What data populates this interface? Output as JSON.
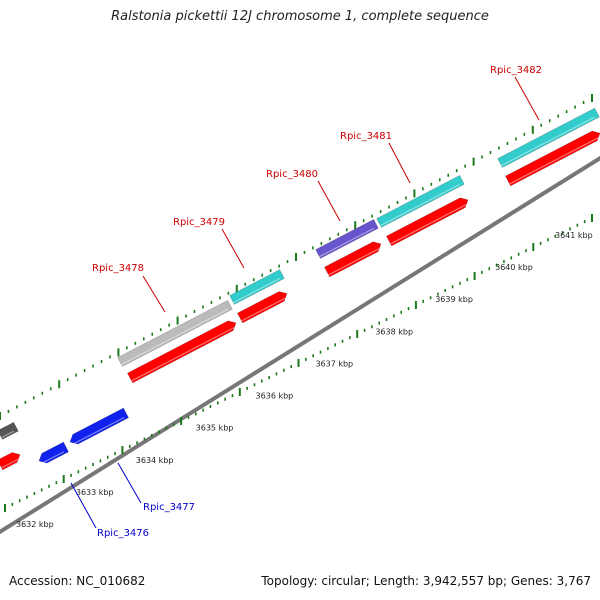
{
  "title": "Ralstonia pickettii 12J chromosome 1, complete sequence",
  "footer": {
    "accession": "Accession: NC_010682",
    "summary": "Topology: circular; Length: 3,942,557 bp; Genes: 3,767"
  },
  "colors": {
    "forward_label": "#cc0000",
    "reverse_label": "#0000cc",
    "cds": "#ff0000",
    "forward_gene": "#33cccc",
    "pseudo_gene": "#bbbbbb",
    "rna_gene": "#6655cc",
    "reverse_gene": "#1122ee",
    "dark_gene": "#555555",
    "backbone": "#888888",
    "tick": "#1a7a1a"
  },
  "scale_labels": [
    "3632 kbp",
    "3633 kbp",
    "3634 kbp",
    "3635 kbp",
    "3636 kbp",
    "3637 kbp",
    "3638 kbp",
    "3639 kbp",
    "3640 kbp",
    "3641 kbp"
  ],
  "genes": [
    {
      "name": "Rpic_3476",
      "strand": "reverse"
    },
    {
      "name": "Rpic_3477",
      "strand": "reverse"
    },
    {
      "name": "Rpic_3478",
      "strand": "forward"
    },
    {
      "name": "Rpic_3479",
      "strand": "forward"
    },
    {
      "name": "Rpic_3480",
      "strand": "forward"
    },
    {
      "name": "Rpic_3481",
      "strand": "forward"
    },
    {
      "name": "Rpic_3482",
      "strand": "forward"
    }
  ]
}
